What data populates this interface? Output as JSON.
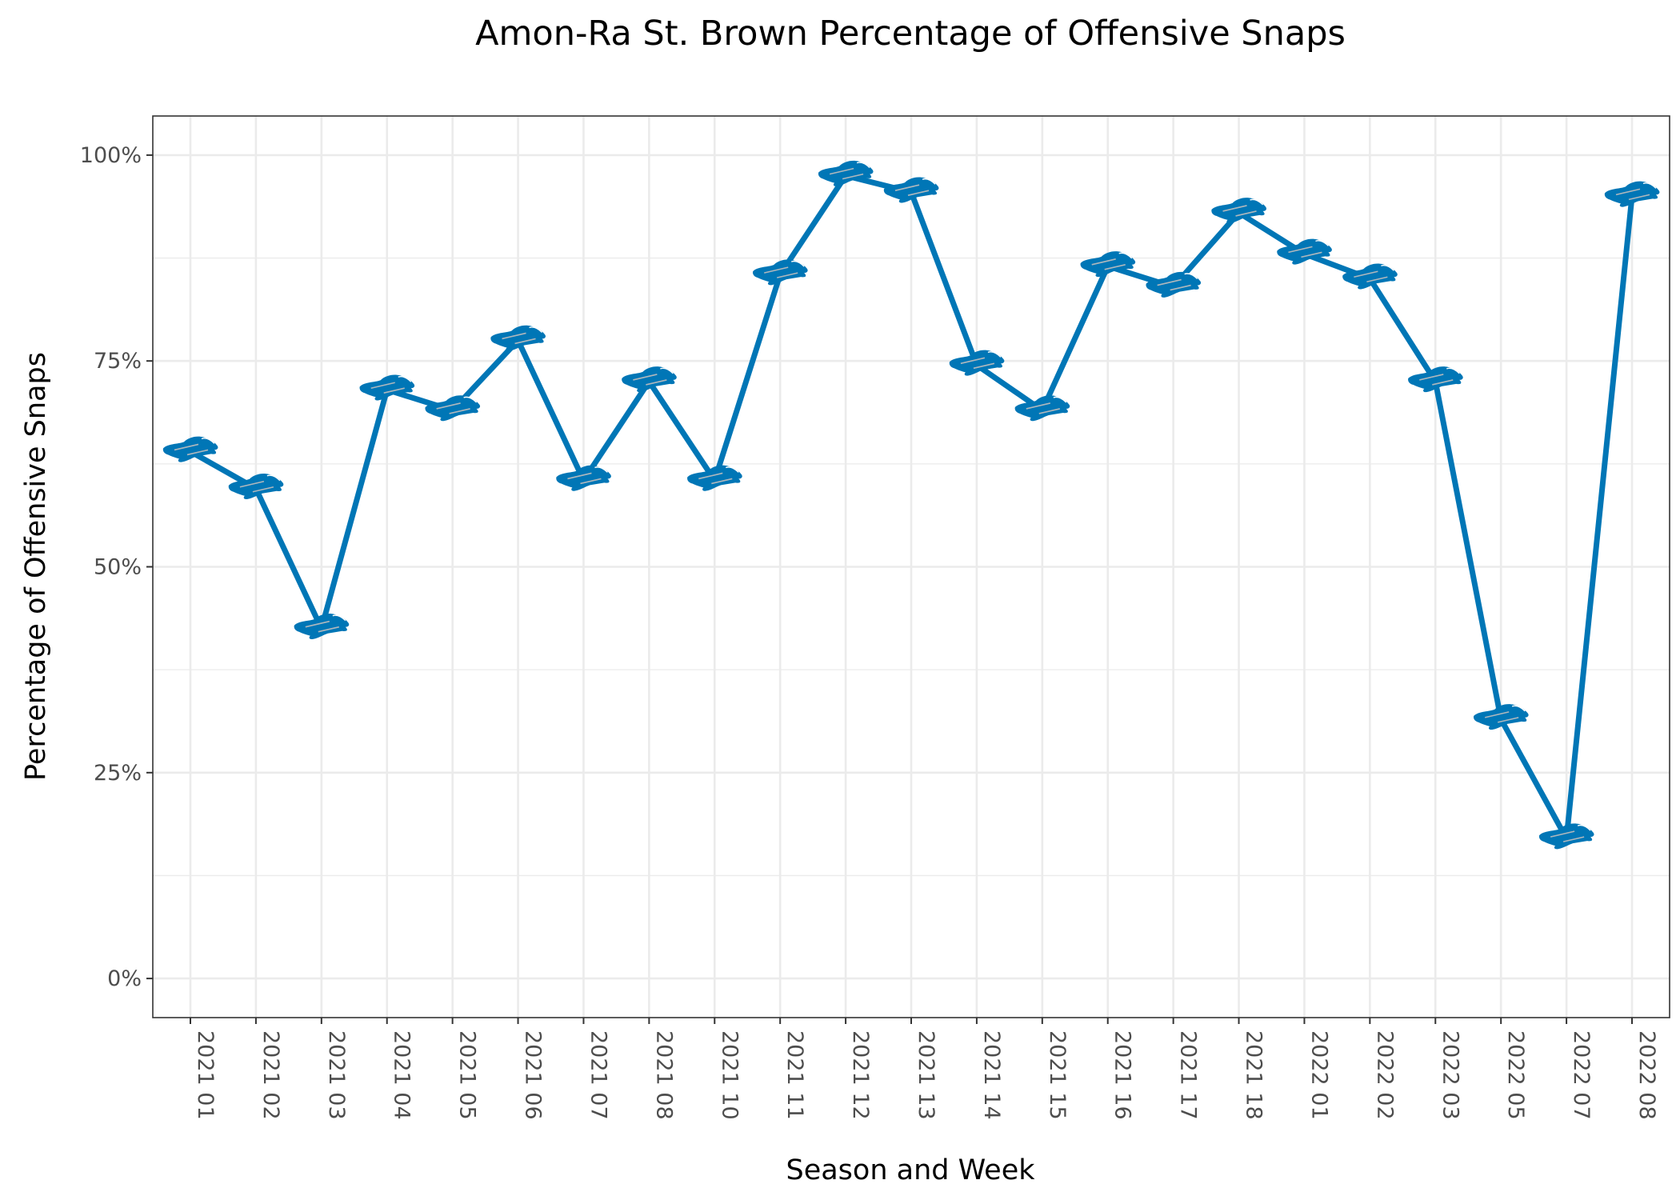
{
  "chart_data": {
    "type": "line",
    "title": "Amon-Ra St. Brown Percentage of Offensive Snaps",
    "xlabel": "Season and Week",
    "ylabel": "Percentage of Offensive Snaps",
    "categories": [
      "2021 01",
      "2021 02",
      "2021 03",
      "2021 04",
      "2021 05",
      "2021 06",
      "2021 07",
      "2021 08",
      "2021 10",
      "2021 11",
      "2021 12",
      "2021 13",
      "2021 14",
      "2021 15",
      "2021 16",
      "2021 17",
      "2021 18",
      "2022 01",
      "2022 02",
      "2022 03",
      "2022 05",
      "2022 07",
      "2022 08"
    ],
    "series": [
      {
        "values": [
          64,
          59.5,
          42.5,
          71.5,
          69,
          77.5,
          60.5,
          72.5,
          60.5,
          85.5,
          97.5,
          95.5,
          74.5,
          69,
          86.5,
          84,
          93,
          88,
          85,
          72.5,
          31.5,
          17,
          95
        ],
        "color": "#0076B6",
        "marker": "lion-logo-icon"
      }
    ],
    "ylim": [
      -4.75,
      104.75
    ],
    "yticks": [
      0,
      25,
      50,
      75,
      100
    ],
    "ytick_labels": [
      "0%",
      "25%",
      "50%",
      "75%",
      "100%"
    ],
    "grid": true,
    "legend": "none",
    "colors": {
      "line": "#0076B6",
      "marker_fill": "#0076B6",
      "marker_accent": "#B0B7BC"
    }
  }
}
